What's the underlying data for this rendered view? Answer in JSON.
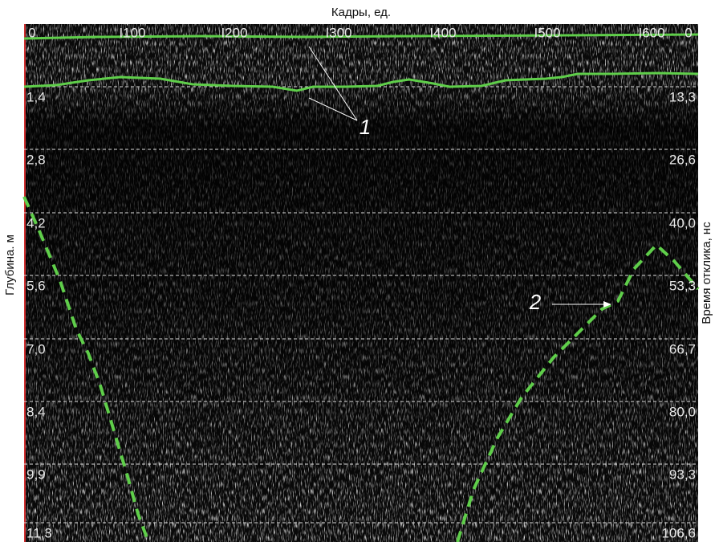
{
  "x_axis_title": "Кадры, ед.",
  "left_axis_title": "Глубина. м",
  "right_axis_title": "Время отклика, нс",
  "top_ticks": [
    "0",
    "I100",
    "I200",
    "I300",
    "I400",
    "I500",
    "I600",
    "0"
  ],
  "left_ticks": [
    "1,4",
    "2,8",
    "4,2",
    "5,6",
    "7,0",
    "8,4",
    "9,9",
    "11,3"
  ],
  "right_ticks": [
    "13,3",
    "26,6",
    "40,0",
    "53,3",
    "66,7",
    "80,0",
    "93,3",
    "106,6"
  ],
  "annotations": [
    "1",
    "2"
  ]
}
